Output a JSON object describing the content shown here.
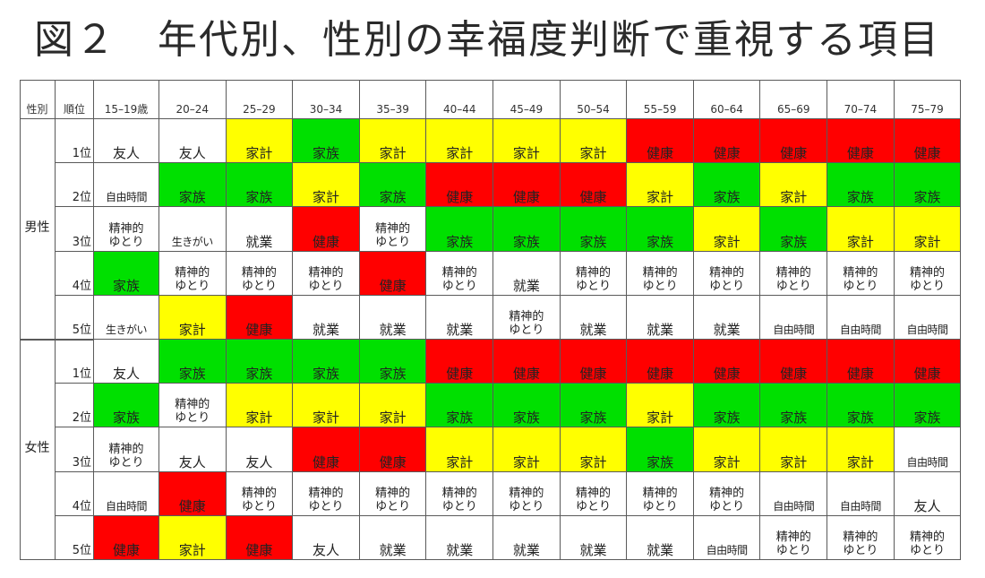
{
  "title": "図２　年代別、性別の幸福度判断で重視する項目",
  "colors": {
    "健康": "#ff0000",
    "家族": "#00e000",
    "家計": "#ffff00",
    "other": "#ffffff"
  },
  "chart_data": {
    "type": "table",
    "header": {
      "gender": "性別",
      "rank": "順位"
    },
    "age_groups": [
      "15–19歳",
      "20–24",
      "25–29",
      "30–34",
      "35–39",
      "40–44",
      "45–49",
      "50–54",
      "55–59",
      "60–64",
      "65–69",
      "70–74",
      "75–79"
    ],
    "groups": [
      {
        "gender": "男性",
        "rows": [
          {
            "rank": "1位",
            "cells": [
              "友人",
              "友人",
              "家計",
              "家族",
              "家計",
              "家計",
              "家計",
              "家計",
              "健康",
              "健康",
              "健康",
              "健康",
              "健康"
            ]
          },
          {
            "rank": "2位",
            "cells": [
              "自由時間",
              "家族",
              "家族",
              "家計",
              "家族",
              "健康",
              "健康",
              "健康",
              "家計",
              "家族",
              "家計",
              "家族",
              "家族"
            ]
          },
          {
            "rank": "3位",
            "cells": [
              "精神的\nゆとり",
              "生きがい",
              "就業",
              "健康",
              "精神的\nゆとり",
              "家族",
              "家族",
              "家族",
              "家族",
              "家計",
              "家族",
              "家計",
              "家計"
            ]
          },
          {
            "rank": "4位",
            "cells": [
              "家族",
              "精神的\nゆとり",
              "精神的\nゆとり",
              "精神的\nゆとり",
              "健康",
              "精神的\nゆとり",
              "就業",
              "精神的\nゆとり",
              "精神的\nゆとり",
              "精神的\nゆとり",
              "精神的\nゆとり",
              "精神的\nゆとり",
              "精神的\nゆとり"
            ]
          },
          {
            "rank": "5位",
            "cells": [
              "生きがい",
              "家計",
              "健康",
              "就業",
              "就業",
              "就業",
              "精神的\nゆとり",
              "就業",
              "就業",
              "就業",
              "自由時間",
              "自由時間",
              "自由時間"
            ]
          }
        ]
      },
      {
        "gender": "女性",
        "rows": [
          {
            "rank": "1位",
            "cells": [
              "友人",
              "家族",
              "家族",
              "家族",
              "家族",
              "健康",
              "健康",
              "健康",
              "健康",
              "健康",
              "健康",
              "健康",
              "健康"
            ]
          },
          {
            "rank": "2位",
            "cells": [
              "家族",
              "精神的\nゆとり",
              "家計",
              "家計",
              "家計",
              "家族",
              "家族",
              "家族",
              "家計",
              "家族",
              "家族",
              "家族",
              "家族"
            ]
          },
          {
            "rank": "3位",
            "cells": [
              "精神的\nゆとり",
              "友人",
              "友人",
              "健康",
              "健康",
              "家計",
              "家計",
              "家計",
              "家族",
              "家計",
              "家計",
              "家計",
              "自由時間"
            ]
          },
          {
            "rank": "4位",
            "cells": [
              "自由時間",
              "健康",
              "精神的\nゆとり",
              "精神的\nゆとり",
              "精神的\nゆとり",
              "精神的\nゆとり",
              "精神的\nゆとり",
              "精神的\nゆとり",
              "精神的\nゆとり",
              "精神的\nゆとり",
              "自由時間",
              "自由時間",
              "友人"
            ]
          },
          {
            "rank": "5位",
            "cells": [
              "健康",
              "家計",
              "健康",
              "友人",
              "就業",
              "就業",
              "就業",
              "就業",
              "就業",
              "自由時間",
              "精神的\nゆとり",
              "精神的\nゆとり",
              "精神的\nゆとり"
            ]
          }
        ]
      }
    ]
  }
}
